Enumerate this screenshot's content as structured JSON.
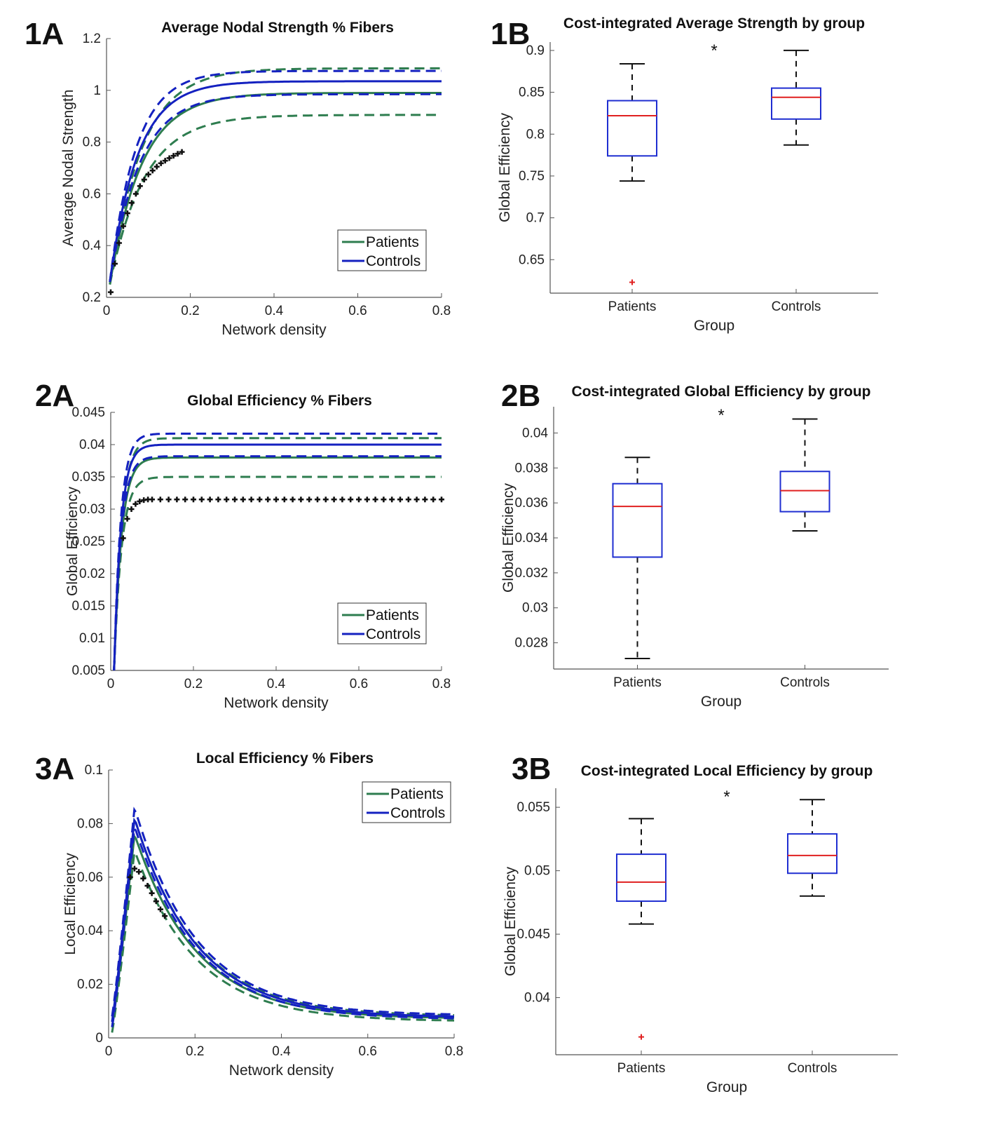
{
  "colors": {
    "patients": "#2e7d4f",
    "controls": "#1421c0",
    "boxplot": "#1f2ed1",
    "median": "#e02020",
    "outlier": "#e02020",
    "raw": "#111111",
    "axis": "#555555"
  },
  "chart_data": [
    {
      "id": "1A",
      "panel_label": "1A",
      "type": "line",
      "title": "Average Nodal Strength  % Fibers",
      "xlabel": "Network density",
      "ylabel": "Average Nodal Strength",
      "xlim": [
        0,
        0.8
      ],
      "ylim": [
        0.2,
        1.2
      ],
      "xticks": [
        0,
        0.2,
        0.4,
        0.6,
        0.8
      ],
      "xtick_labels": [
        "0",
        "0.2",
        "0.4",
        "0.6",
        "0.8"
      ],
      "yticks": [
        0.2,
        0.4,
        0.6,
        0.8,
        1,
        1.2
      ],
      "ytick_labels": [
        "0.2",
        "0.4",
        "0.6",
        "0.8",
        "1",
        "1.2"
      ],
      "legend": {
        "position": "bottom-right",
        "entries": [
          "Patients",
          "Controls"
        ]
      },
      "model": "saturating",
      "series": [
        {
          "name": "Patients",
          "group": "patients",
          "style": "solid",
          "start": 0.25,
          "plateau": 0.99,
          "rate": 13
        },
        {
          "name": "Patients upper",
          "group": "patients",
          "style": "dashed",
          "start": 0.25,
          "plateau": 1.085,
          "rate": 13
        },
        {
          "name": "Patients lower",
          "group": "patients",
          "style": "dashed",
          "start": 0.25,
          "plateau": 0.905,
          "rate": 12
        },
        {
          "name": "Controls",
          "group": "controls",
          "style": "solid",
          "start": 0.26,
          "plateau": 1.035,
          "rate": 15
        },
        {
          "name": "Controls upper",
          "group": "controls",
          "style": "dashed",
          "start": 0.26,
          "plateau": 1.075,
          "rate": 16
        },
        {
          "name": "Controls lower",
          "group": "controls",
          "style": "dashed",
          "start": 0.26,
          "plateau": 0.985,
          "rate": 14
        }
      ],
      "raw_points": {
        "x": [
          0.01,
          0.02,
          0.03,
          0.04,
          0.05,
          0.06,
          0.07,
          0.08,
          0.09,
          0.1,
          0.11,
          0.12,
          0.13,
          0.14,
          0.15,
          0.16,
          0.17,
          0.18
        ],
        "y": [
          0.22,
          0.33,
          0.41,
          0.475,
          0.525,
          0.565,
          0.6,
          0.63,
          0.655,
          0.675,
          0.69,
          0.705,
          0.718,
          0.728,
          0.738,
          0.747,
          0.755,
          0.762
        ]
      }
    },
    {
      "id": "1B",
      "panel_label": "1B",
      "type": "box",
      "title": "Cost-integrated Average Strength by group",
      "xlabel": "Group",
      "ylabel": "Global Efficiency",
      "ylim": [
        0.61,
        0.91
      ],
      "yticks": [
        0.65,
        0.7,
        0.75,
        0.8,
        0.85,
        0.9
      ],
      "ytick_labels": [
        "0.65",
        "0.7",
        "0.75",
        "0.8",
        "0.85",
        "0.9"
      ],
      "categories": [
        "Patients",
        "Controls"
      ],
      "significance": "*",
      "boxes": [
        {
          "name": "Patients",
          "min": 0.744,
          "q1": 0.774,
          "median": 0.822,
          "q3": 0.84,
          "max": 0.884,
          "outliers": [
            0.623
          ]
        },
        {
          "name": "Controls",
          "min": 0.787,
          "q1": 0.818,
          "median": 0.844,
          "q3": 0.855,
          "max": 0.9,
          "outliers": []
        }
      ]
    },
    {
      "id": "2A",
      "panel_label": "2A",
      "type": "line",
      "title": "Global Efficiency  % Fibers",
      "xlabel": "Network density",
      "ylabel": "Global Efficiency",
      "xlim": [
        0,
        0.8
      ],
      "ylim": [
        0.005,
        0.045
      ],
      "xticks": [
        0,
        0.2,
        0.4,
        0.6,
        0.8
      ],
      "xtick_labels": [
        "0",
        "0.2",
        "0.4",
        "0.6",
        "0.8"
      ],
      "yticks": [
        0.005,
        0.01,
        0.015,
        0.02,
        0.025,
        0.03,
        0.035,
        0.04,
        0.045
      ],
      "ytick_labels": [
        "0.005",
        "0.01",
        "0.015",
        "0.02",
        "0.025",
        "0.03",
        "0.035",
        "0.04",
        "0.045"
      ],
      "legend": {
        "position": "bottom-right",
        "entries": [
          "Patients",
          "Controls"
        ]
      },
      "model": "saturating",
      "series": [
        {
          "name": "Patients",
          "group": "patients",
          "style": "solid",
          "start": 0.005,
          "plateau": 0.038,
          "rate": 55
        },
        {
          "name": "Patients upper",
          "group": "patients",
          "style": "dashed",
          "start": 0.005,
          "plateau": 0.041,
          "rate": 55
        },
        {
          "name": "Patients lower",
          "group": "patients",
          "style": "dashed",
          "start": 0.005,
          "plateau": 0.035,
          "rate": 55
        },
        {
          "name": "Controls",
          "group": "controls",
          "style": "solid",
          "start": 0.005,
          "plateau": 0.04,
          "rate": 60
        },
        {
          "name": "Controls upper",
          "group": "controls",
          "style": "dashed",
          "start": 0.005,
          "plateau": 0.0417,
          "rate": 62
        },
        {
          "name": "Controls lower",
          "group": "controls",
          "style": "dashed",
          "start": 0.005,
          "plateau": 0.0382,
          "rate": 58
        }
      ],
      "raw_points": {
        "x": [
          0.03,
          0.04,
          0.05,
          0.06,
          0.07,
          0.08,
          0.09,
          0.1,
          0.12,
          0.14,
          0.16,
          0.18,
          0.2,
          0.22,
          0.24,
          0.26,
          0.28,
          0.3,
          0.32,
          0.34,
          0.36,
          0.38,
          0.4,
          0.42,
          0.44,
          0.46,
          0.48,
          0.5,
          0.52,
          0.54,
          0.56,
          0.58,
          0.6,
          0.62,
          0.64,
          0.66,
          0.68,
          0.7,
          0.72,
          0.74,
          0.76,
          0.78,
          0.8
        ],
        "y": [
          0.0255,
          0.0285,
          0.03,
          0.0308,
          0.0312,
          0.0314,
          0.0315,
          0.0315,
          0.0315,
          0.0315,
          0.0315,
          0.0315,
          0.0315,
          0.0315,
          0.0315,
          0.0315,
          0.0315,
          0.0315,
          0.0315,
          0.0315,
          0.0315,
          0.0315,
          0.0315,
          0.0315,
          0.0315,
          0.0315,
          0.0315,
          0.0315,
          0.0315,
          0.0315,
          0.0315,
          0.0315,
          0.0315,
          0.0315,
          0.0315,
          0.0315,
          0.0315,
          0.0315,
          0.0315,
          0.0315,
          0.0315,
          0.0315,
          0.0315
        ]
      }
    },
    {
      "id": "2B",
      "panel_label": "2B",
      "type": "box",
      "title": "Cost-integrated Global Efficiency by group",
      "xlabel": "Group",
      "ylabel": "Global Efficiency",
      "ylim": [
        0.0265,
        0.0415
      ],
      "yticks": [
        0.028,
        0.03,
        0.032,
        0.034,
        0.036,
        0.038,
        0.04
      ],
      "ytick_labels": [
        "0.028",
        "0.03",
        "0.032",
        "0.034",
        "0.036",
        "0.038",
        "0.04"
      ],
      "categories": [
        "Patients",
        "Controls"
      ],
      "significance": "*",
      "boxes": [
        {
          "name": "Patients",
          "min": 0.0271,
          "q1": 0.0329,
          "median": 0.0358,
          "q3": 0.0371,
          "max": 0.0386,
          "outliers": []
        },
        {
          "name": "Controls",
          "min": 0.0344,
          "q1": 0.0355,
          "median": 0.0367,
          "q3": 0.0378,
          "max": 0.0408,
          "outliers": []
        }
      ]
    },
    {
      "id": "3A",
      "panel_label": "3A",
      "type": "line",
      "title": "Local Efficiency  % Fibers",
      "xlabel": "Network density",
      "ylabel": "Local Efficiency",
      "xlim": [
        0,
        0.8
      ],
      "ylim": [
        0,
        0.1
      ],
      "xticks": [
        0,
        0.2,
        0.4,
        0.6,
        0.8
      ],
      "xtick_labels": [
        "0",
        "0.2",
        "0.4",
        "0.6",
        "0.8"
      ],
      "yticks": [
        0,
        0.02,
        0.04,
        0.06,
        0.08,
        0.1
      ],
      "ytick_labels": [
        "0",
        "0.02",
        "0.04",
        "0.06",
        "0.08",
        "0.1"
      ],
      "legend": {
        "position": "top-right",
        "entries": [
          "Patients",
          "Controls"
        ]
      },
      "model": "peaked",
      "series": [
        {
          "name": "Patients",
          "group": "patients",
          "style": "solid",
          "start": 0.004,
          "peak_x": 0.06,
          "peak": 0.076,
          "end": 0.0075
        },
        {
          "name": "Patients upper",
          "group": "patients",
          "style": "dashed",
          "start": 0.006,
          "peak_x": 0.06,
          "peak": 0.082,
          "end": 0.0085
        },
        {
          "name": "Patients lower",
          "group": "patients",
          "style": "dashed",
          "start": 0.002,
          "peak_x": 0.06,
          "peak": 0.07,
          "end": 0.0065
        },
        {
          "name": "Controls",
          "group": "controls",
          "style": "solid",
          "start": 0.006,
          "peak_x": 0.06,
          "peak": 0.082,
          "end": 0.008
        },
        {
          "name": "Controls upper",
          "group": "controls",
          "style": "dashed",
          "start": 0.008,
          "peak_x": 0.06,
          "peak": 0.086,
          "end": 0.0088
        },
        {
          "name": "Controls lower",
          "group": "controls",
          "style": "dashed",
          "start": 0.004,
          "peak_x": 0.06,
          "peak": 0.079,
          "end": 0.0073
        }
      ],
      "raw_points": {
        "x": [
          0.05,
          0.06,
          0.07,
          0.08,
          0.09,
          0.1,
          0.11,
          0.12,
          0.13
        ],
        "y": [
          0.06,
          0.0632,
          0.062,
          0.0595,
          0.0568,
          0.054,
          0.051,
          0.048,
          0.0455
        ]
      }
    },
    {
      "id": "3B",
      "panel_label": "3B",
      "type": "box",
      "title": "Cost-integrated Local Efficiency by group",
      "xlabel": "Group",
      "ylabel": "Global Efficiency",
      "ylim": [
        0.0355,
        0.0565
      ],
      "yticks": [
        0.04,
        0.045,
        0.05,
        0.055
      ],
      "ytick_labels": [
        "0.04",
        "0.045",
        "0.05",
        "0.055"
      ],
      "categories": [
        "Patients",
        "Controls"
      ],
      "significance": "*",
      "boxes": [
        {
          "name": "Patients",
          "min": 0.0458,
          "q1": 0.0476,
          "median": 0.0491,
          "q3": 0.0513,
          "max": 0.0541,
          "outliers": [
            0.0369
          ]
        },
        {
          "name": "Controls",
          "min": 0.048,
          "q1": 0.0498,
          "median": 0.0512,
          "q3": 0.0529,
          "max": 0.0556,
          "outliers": []
        }
      ]
    }
  ]
}
